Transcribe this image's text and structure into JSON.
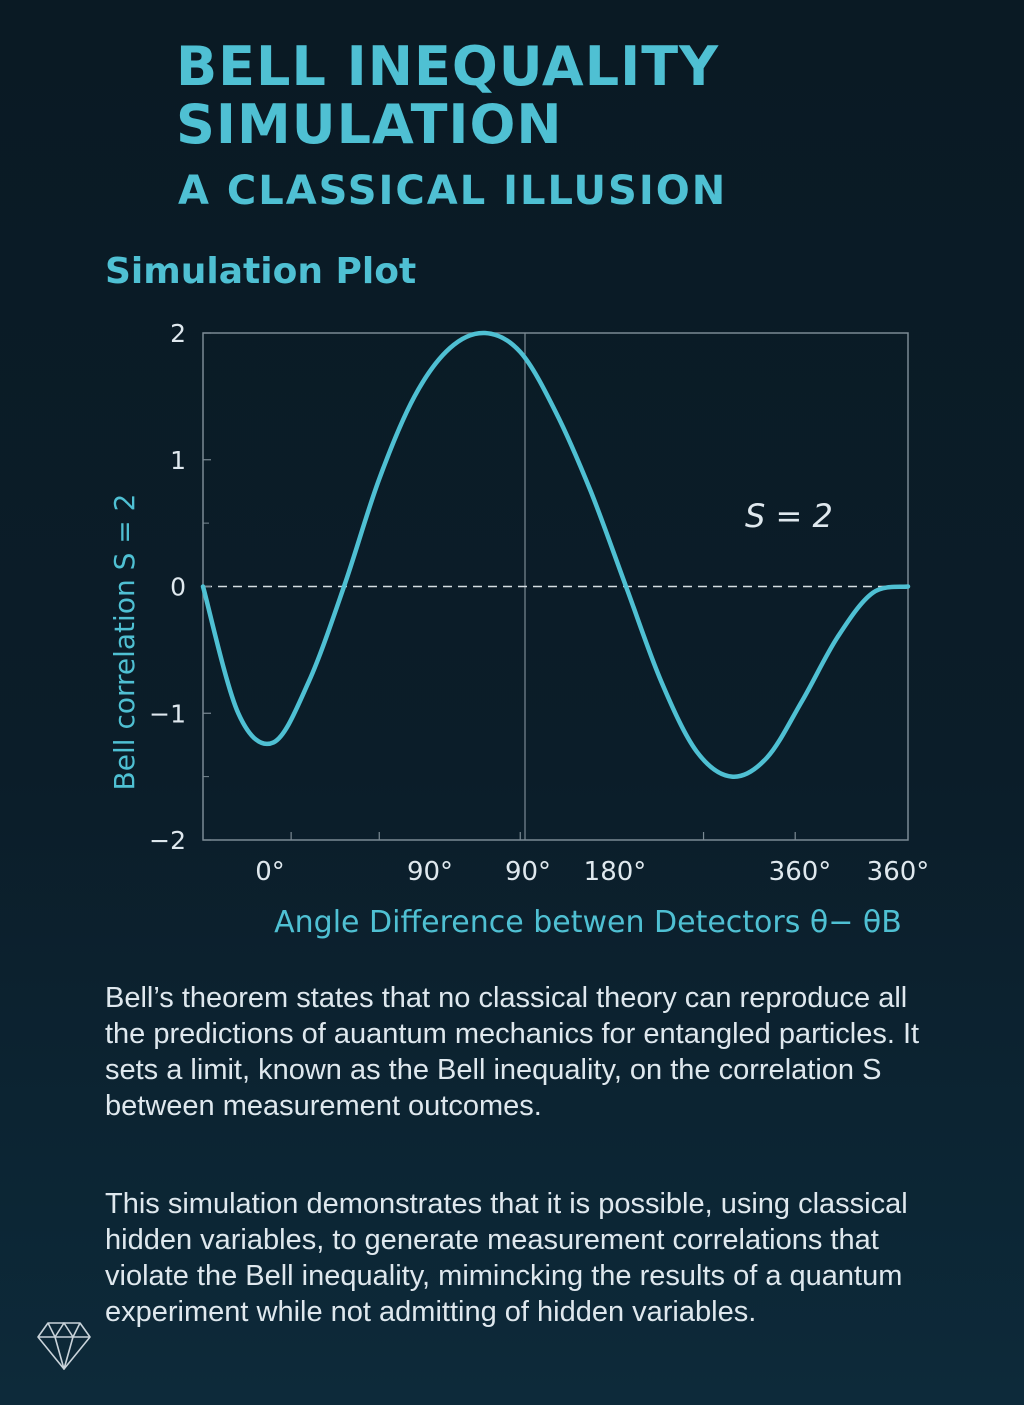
{
  "header": {
    "title": "BELL INEQUALITY SIMULATION",
    "subtitle": "A CLASSICAL ILLUSION",
    "section_title": "Simulation Plot"
  },
  "colors": {
    "accent": "#4fc0d3",
    "text": "#dfe8ee",
    "axis": "#7b8a94",
    "background": "#0b1d29"
  },
  "chart_data": {
    "type": "line",
    "xlabel": "Angle Difference betwen Detectors θ− θB",
    "ylabel": "Bell correlation  S = 2",
    "annotation": "S = 2",
    "x_tick_labels": [
      "0°",
      "90°",
      "90°",
      "180°",
      "360°",
      "360°"
    ],
    "y_ticks": [
      2,
      1,
      0,
      -1,
      -2
    ],
    "y_tick_labels": [
      "2",
      "1",
      "0",
      "−1",
      "−2"
    ],
    "ylim": [
      -2,
      2
    ],
    "reference_line": 0,
    "series": [
      {
        "x": [
          0,
          0.05,
          0.1,
          0.15,
          0.2,
          0.25,
          0.3,
          0.35,
          0.4,
          0.45,
          0.5,
          0.55,
          0.6,
          0.65,
          0.7,
          0.75,
          0.8,
          0.85,
          0.9,
          0.95,
          1.0
        ],
        "values": [
          0,
          -1.0,
          -1.23,
          -0.75,
          0,
          0.85,
          1.5,
          1.88,
          2.0,
          1.85,
          1.38,
          0.75,
          0,
          -0.75,
          -1.3,
          -1.5,
          -1.35,
          -0.9,
          -0.4,
          -0.05,
          0
        ]
      }
    ]
  },
  "body": {
    "paragraph1": "Bell’s theorem states that no classical theory can reproduce all the predictions of auantum mechanics for entangled particles. It sets a limit, known as the Bell inequality, on the correlation S between measurement outcomes.",
    "paragraph2": "This simulation demonstrates that it is possible, using classical hidden variables, to generate measurement correlations that violate the Bell inequality, mimincking the results of a quantum experiment while not admitting of hidden variables."
  },
  "logo": {
    "icon": "diamond-icon"
  }
}
